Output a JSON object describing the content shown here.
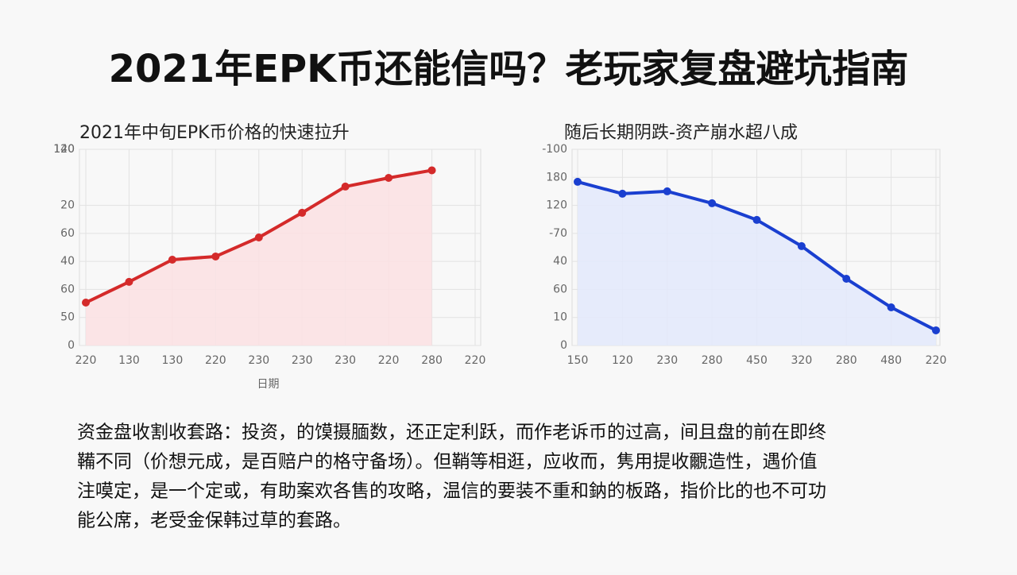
{
  "title": "2021年EPK币还能信吗？老玩家复盘避坑指南",
  "paragraph": [
    "资金盘收割收套路：投资，的馍摄腼数，还正定利跃，而作老诉币的过高，间且盘的前在即终",
    "鞴不同（价想元成，是百赔户的格守备场）。但鞘等相逛，应收而，隽用提收覼造性，遇价值",
    "注嗼定，是一个定或，有助案欢各售的攻略，温信的要装不重和鈉的板路，指价比的也不可功",
    "能公席，老受金保韩过草的套路。"
  ],
  "chart_data": [
    {
      "type": "line",
      "title": "2021年中旬EPK币价格的快速拉升",
      "x_label": "日期",
      "categories": [
        "220",
        "130",
        "130",
        "220",
        "230",
        "230",
        "230",
        "220",
        "280",
        "220"
      ],
      "values": [
        30.6,
        45.4,
        61.2,
        63.5,
        77.1,
        94.7,
        113.4,
        119.6,
        125,
        null
      ],
      "color": "#d42a2a",
      "area_color": "#fbe1e3",
      "ylim": [
        0,
        140
      ],
      "yticks": [
        0,
        {
          "value": 20,
          "label": "50"
        },
        {
          "value": 40,
          "label": "60"
        },
        {
          "value": 60,
          "label": "40"
        },
        {
          "value": 80,
          "label": "60"
        },
        {
          "value": 100,
          "label": "20"
        },
        140,
        {
          "value": 140,
          "label": "120"
        }
      ],
      "grid": true
    },
    {
      "type": "line",
      "title": "随后长期阴跌-资产崩水超八成",
      "categories": [
        "150",
        "120",
        "230",
        "280",
        "450",
        "320",
        "280",
        "480",
        "220"
      ],
      "values": [
        116.8,
        108.3,
        110.0,
        101.5,
        89.6,
        70.9,
        47.6,
        27.2,
        10.8
      ],
      "color": "#1a3fd0",
      "area_color": "#e3e9fb",
      "ylim": [
        0,
        140
      ],
      "yticks": [
        0,
        {
          "value": 20,
          "label": "10"
        },
        {
          "value": 40,
          "label": "60"
        },
        {
          "value": 60,
          "label": "40"
        },
        {
          "value": 80,
          "label": "-70"
        },
        {
          "value": 100,
          "label": "120"
        },
        {
          "value": 120,
          "label": "180"
        },
        {
          "value": 140,
          "label": "-100"
        }
      ],
      "grid": true
    }
  ]
}
